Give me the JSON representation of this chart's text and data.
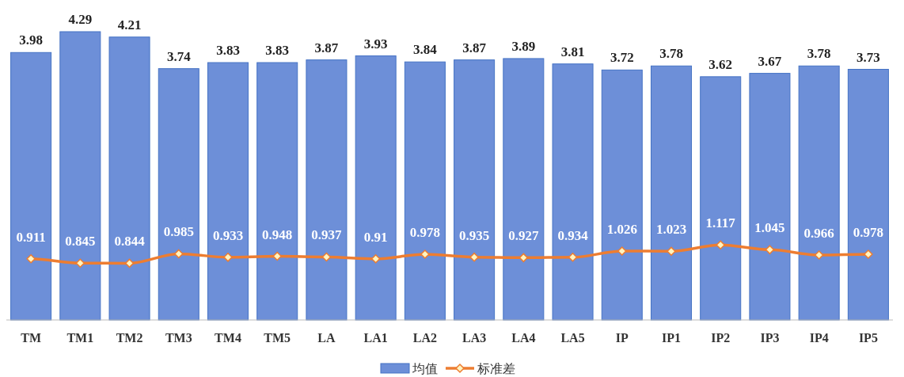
{
  "chart_data": {
    "type": "bar",
    "categories": [
      "TM",
      "TM1",
      "TM2",
      "TM3",
      "TM4",
      "TM5",
      "LA",
      "LA1",
      "LA2",
      "LA3",
      "LA4",
      "LA5",
      "IP",
      "IP1",
      "IP2",
      "IP3",
      "IP4",
      "IP5"
    ],
    "series": [
      {
        "name": "均值",
        "color": "#6d8fd8",
        "values": [
          3.98,
          4.29,
          4.21,
          3.74,
          3.83,
          3.83,
          3.87,
          3.93,
          3.84,
          3.87,
          3.89,
          3.81,
          3.72,
          3.78,
          3.62,
          3.67,
          3.78,
          3.73
        ]
      },
      {
        "name": "标准差",
        "type": "line",
        "color": "#ed7d31",
        "marker": "diamond",
        "values": [
          0.911,
          0.845,
          0.844,
          0.985,
          0.933,
          0.948,
          0.937,
          0.91,
          0.978,
          0.935,
          0.927,
          0.934,
          1.026,
          1.023,
          1.117,
          1.045,
          0.966,
          0.978
        ]
      }
    ],
    "data_labels": true,
    "legend": "bottom",
    "grid": false
  }
}
